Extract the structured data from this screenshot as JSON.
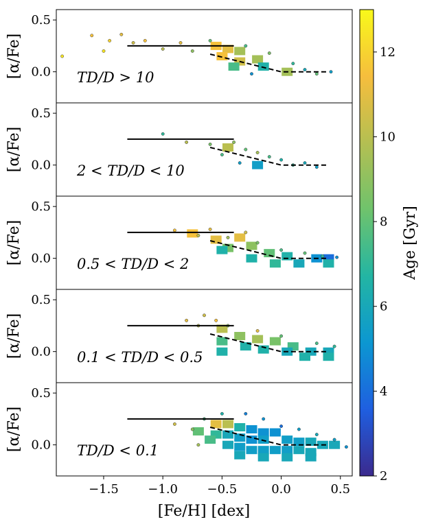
{
  "chart_data": {
    "type": "scatter",
    "title": "",
    "shared_x": {
      "label": "[Fe/H] [dex]",
      "xlim": [
        -1.9,
        0.6
      ],
      "ticks": [
        -1.5,
        -1.0,
        -0.5,
        0.0,
        0.5
      ],
      "tick_labels": [
        "−1.5",
        "−1.0",
        "−0.5",
        "0.0",
        "0.5"
      ]
    },
    "colorbar": {
      "label": "Age [Gyr]",
      "range": [
        2,
        13
      ],
      "ticks": [
        2,
        4,
        6,
        8,
        10,
        12
      ],
      "tick_labels": [
        "2",
        "4",
        "6",
        "8",
        "10",
        "12"
      ],
      "stops": [
        "#3b2a8e",
        "#1f5fe0",
        "#0c97d1",
        "#23b5a3",
        "#6fc36c",
        "#b4bf52",
        "#f6be3d",
        "#f9f91a"
      ]
    },
    "panels": [
      {
        "annotation": "TD/D > 10",
        "ylabel": "[α/Fe]",
        "ylim": [
          -0.3,
          0.6
        ],
        "yticks": [
          0.0,
          0.5
        ],
        "ytick_labels": [
          "0.0",
          "0.5"
        ],
        "solid_line": {
          "x": [
            -1.3,
            -0.4
          ],
          "y": [
            0.25,
            0.25
          ]
        },
        "dashed_line": {
          "x": [
            -0.6,
            0.0,
            0.38
          ],
          "y": [
            0.17,
            0.0,
            0.0
          ]
        },
        "bins": [
          {
            "x": -0.55,
            "y": 0.25,
            "age": 11.5
          },
          {
            "x": -0.45,
            "y": 0.22,
            "age": 11.0
          },
          {
            "x": -0.35,
            "y": 0.2,
            "age": 9.5
          },
          {
            "x": -0.5,
            "y": 0.15,
            "age": 11.5
          },
          {
            "x": -0.35,
            "y": 0.1,
            "age": 10.5
          },
          {
            "x": -0.2,
            "y": 0.12,
            "age": 9.5
          },
          {
            "x": -0.15,
            "y": 0.05,
            "age": 6.5
          },
          {
            "x": -0.4,
            "y": 0.05,
            "age": 7.5
          },
          {
            "x": 0.05,
            "y": 0.0,
            "age": 9.5
          }
        ],
        "points": [
          {
            "x": -1.85,
            "y": 0.15,
            "age": 12.5
          },
          {
            "x": -1.6,
            "y": 0.35,
            "age": 11.5
          },
          {
            "x": -1.45,
            "y": 0.3,
            "age": 12.0
          },
          {
            "x": -1.35,
            "y": 0.36,
            "age": 11.0
          },
          {
            "x": -1.5,
            "y": 0.2,
            "age": 12.5
          },
          {
            "x": -1.25,
            "y": 0.28,
            "age": 10.5
          },
          {
            "x": -1.15,
            "y": 0.3,
            "age": 11.5
          },
          {
            "x": -1.0,
            "y": 0.22,
            "age": 10.0
          },
          {
            "x": -0.85,
            "y": 0.28,
            "age": 11.0
          },
          {
            "x": -0.75,
            "y": 0.2,
            "age": 9.0
          },
          {
            "x": -0.6,
            "y": 0.3,
            "age": 8.0
          },
          {
            "x": -0.3,
            "y": 0.25,
            "age": 7.5
          },
          {
            "x": -0.1,
            "y": 0.18,
            "age": 8.5
          },
          {
            "x": 0.1,
            "y": 0.08,
            "age": 7.0
          },
          {
            "x": 0.2,
            "y": 0.02,
            "age": 6.0
          },
          {
            "x": 0.3,
            "y": -0.02,
            "age": 8.0
          },
          {
            "x": 0.42,
            "y": 0.0,
            "age": 5.5
          },
          {
            "x": -0.25,
            "y": -0.02,
            "age": 5.0
          }
        ]
      },
      {
        "annotation": "2 < TD/D < 10",
        "ylabel": "[α/Fe]",
        "ylim": [
          -0.3,
          0.6
        ],
        "yticks": [
          0.0,
          0.5
        ],
        "ytick_labels": [
          "0.0",
          "0.5"
        ],
        "solid_line": {
          "x": [
            -1.3,
            -0.4
          ],
          "y": [
            0.25,
            0.25
          ]
        },
        "dashed_line": {
          "x": [
            -0.6,
            0.0,
            0.38
          ],
          "y": [
            0.17,
            0.0,
            0.0
          ]
        },
        "bins": [
          {
            "x": -0.45,
            "y": 0.17,
            "age": 10.0
          },
          {
            "x": -0.2,
            "y": 0.0,
            "age": 5.5
          }
        ],
        "points": [
          {
            "x": -1.0,
            "y": 0.3,
            "age": 7.0
          },
          {
            "x": -0.8,
            "y": 0.22,
            "age": 10.0
          },
          {
            "x": -0.6,
            "y": 0.2,
            "age": 8.5
          },
          {
            "x": -0.5,
            "y": 0.1,
            "age": 7.5
          },
          {
            "x": -0.4,
            "y": 0.22,
            "age": 9.0
          },
          {
            "x": -0.3,
            "y": 0.15,
            "age": 8.0
          },
          {
            "x": -0.2,
            "y": 0.12,
            "age": 9.5
          },
          {
            "x": -0.1,
            "y": 0.08,
            "age": 7.5
          },
          {
            "x": 0.0,
            "y": 0.05,
            "age": 6.5
          },
          {
            "x": -0.35,
            "y": 0.02,
            "age": 5.5
          },
          {
            "x": 0.1,
            "y": 0.0,
            "age": 7.0
          },
          {
            "x": 0.2,
            "y": 0.02,
            "age": 6.0
          },
          {
            "x": 0.3,
            "y": -0.02,
            "age": 5.5
          }
        ]
      },
      {
        "annotation": "0.5 < TD/D < 2",
        "ylabel": "[α/Fe]",
        "ylim": [
          -0.3,
          0.6
        ],
        "yticks": [
          0.0,
          0.5
        ],
        "ytick_labels": [
          "0.0",
          "0.5"
        ],
        "solid_line": {
          "x": [
            -1.3,
            -0.4
          ],
          "y": [
            0.25,
            0.25
          ]
        },
        "dashed_line": {
          "x": [
            -0.6,
            0.0,
            0.38
          ],
          "y": [
            0.17,
            0.0,
            0.0
          ]
        },
        "bins": [
          {
            "x": -0.75,
            "y": 0.24,
            "age": 11.5
          },
          {
            "x": -0.35,
            "y": 0.2,
            "age": 11.0
          },
          {
            "x": -0.55,
            "y": 0.18,
            "age": 11.0
          },
          {
            "x": -0.45,
            "y": 0.1,
            "age": 8.5
          },
          {
            "x": -0.25,
            "y": 0.12,
            "age": 9.0
          },
          {
            "x": -0.5,
            "y": 0.08,
            "age": 6.5
          },
          {
            "x": -0.1,
            "y": 0.05,
            "age": 8.0
          },
          {
            "x": -0.25,
            "y": 0.0,
            "age": 6.5
          },
          {
            "x": 0.05,
            "y": 0.02,
            "age": 6.5
          },
          {
            "x": 0.15,
            "y": -0.05,
            "age": 6.0
          },
          {
            "x": 0.3,
            "y": 0.0,
            "age": 5.0
          },
          {
            "x": 0.4,
            "y": 0.0,
            "age": 4.0
          },
          {
            "x": -0.05,
            "y": -0.05,
            "age": 7.0
          },
          {
            "x": 0.4,
            "y": -0.05,
            "age": 6.5
          }
        ],
        "points": [
          {
            "x": -0.9,
            "y": 0.27,
            "age": 11.5
          },
          {
            "x": -0.7,
            "y": 0.22,
            "age": 10.0
          },
          {
            "x": -0.6,
            "y": 0.28,
            "age": 11.0
          },
          {
            "x": -0.45,
            "y": 0.2,
            "age": 9.5
          },
          {
            "x": -0.3,
            "y": 0.25,
            "age": 10.5
          },
          {
            "x": -0.2,
            "y": 0.15,
            "age": 8.5
          },
          {
            "x": 0.0,
            "y": 0.08,
            "age": 7.5
          },
          {
            "x": 0.2,
            "y": 0.05,
            "age": 8.0
          },
          {
            "x": 0.35,
            "y": 0.02,
            "age": 7.0
          },
          {
            "x": 0.47,
            "y": 0.01,
            "age": 5.0
          }
        ]
      },
      {
        "annotation": "0.1 < TD/D < 0.5",
        "ylabel": "[α/Fe]",
        "ylim": [
          -0.3,
          0.6
        ],
        "yticks": [
          0.0,
          0.5
        ],
        "ytick_labels": [
          "0.0",
          "0.5"
        ],
        "solid_line": {
          "x": [
            -1.3,
            -0.4
          ],
          "y": [
            0.25,
            0.25
          ]
        },
        "dashed_line": {
          "x": [
            -0.6,
            0.0,
            0.38
          ],
          "y": [
            0.17,
            0.0,
            0.0
          ]
        },
        "bins": [
          {
            "x": -0.5,
            "y": 0.22,
            "age": 10.0
          },
          {
            "x": -0.35,
            "y": 0.15,
            "age": 9.0
          },
          {
            "x": -0.5,
            "y": 0.1,
            "age": 7.5
          },
          {
            "x": -0.2,
            "y": 0.12,
            "age": 9.5
          },
          {
            "x": -0.05,
            "y": 0.1,
            "age": 8.5
          },
          {
            "x": 0.1,
            "y": 0.05,
            "age": 7.5
          },
          {
            "x": -0.3,
            "y": 0.05,
            "age": 6.5
          },
          {
            "x": -0.15,
            "y": 0.02,
            "age": 6.5
          },
          {
            "x": 0.05,
            "y": 0.0,
            "age": 6.0
          },
          {
            "x": 0.25,
            "y": 0.0,
            "age": 6.0
          },
          {
            "x": 0.4,
            "y": 0.0,
            "age": 6.0
          },
          {
            "x": -0.5,
            "y": 0.0,
            "age": 6.5
          },
          {
            "x": 0.2,
            "y": -0.05,
            "age": 6.5
          },
          {
            "x": 0.4,
            "y": -0.05,
            "age": 6.5
          }
        ],
        "points": [
          {
            "x": -0.8,
            "y": 0.3,
            "age": 11.0
          },
          {
            "x": -0.65,
            "y": 0.35,
            "age": 10.5
          },
          {
            "x": -0.7,
            "y": 0.25,
            "age": 10.0
          },
          {
            "x": -0.55,
            "y": 0.3,
            "age": 11.5
          },
          {
            "x": -0.45,
            "y": 0.25,
            "age": 9.0
          },
          {
            "x": -0.2,
            "y": 0.2,
            "age": 11.0
          },
          {
            "x": 0.0,
            "y": 0.15,
            "age": 8.0
          },
          {
            "x": 0.3,
            "y": 0.08,
            "age": 7.5
          },
          {
            "x": 0.45,
            "y": 0.05,
            "age": 7.0
          }
        ]
      },
      {
        "annotation": "TD/D < 0.1",
        "ylabel": "[α/Fe]",
        "ylim": [
          -0.3,
          0.6
        ],
        "yticks": [
          0.0,
          0.5
        ],
        "ytick_labels": [
          "0.0",
          "0.5"
        ],
        "solid_line": {
          "x": [
            -1.3,
            -0.4
          ],
          "y": [
            0.25,
            0.25
          ]
        },
        "dashed_line": {
          "x": [
            -0.6,
            0.0,
            0.38
          ],
          "y": [
            0.17,
            0.0,
            0.0
          ]
        },
        "bins": [
          {
            "x": -0.55,
            "y": 0.2,
            "age": 11.0
          },
          {
            "x": -0.45,
            "y": 0.2,
            "age": 10.0
          },
          {
            "x": -0.35,
            "y": 0.17,
            "age": 6.5
          },
          {
            "x": -0.25,
            "y": 0.15,
            "age": 5.0
          },
          {
            "x": -0.15,
            "y": 0.12,
            "age": 5.0
          },
          {
            "x": -0.05,
            "y": 0.12,
            "age": 5.0
          },
          {
            "x": -0.55,
            "y": 0.1,
            "age": 7.0
          },
          {
            "x": -0.45,
            "y": 0.1,
            "age": 6.0
          },
          {
            "x": -0.35,
            "y": 0.07,
            "age": 5.5
          },
          {
            "x": -0.25,
            "y": 0.05,
            "age": 5.0
          },
          {
            "x": -0.15,
            "y": 0.05,
            "age": 5.5
          },
          {
            "x": 0.05,
            "y": 0.05,
            "age": 5.5
          },
          {
            "x": 0.15,
            "y": 0.03,
            "age": 5.5
          },
          {
            "x": 0.25,
            "y": 0.03,
            "age": 6.0
          },
          {
            "x": 0.35,
            "y": 0.0,
            "age": 6.0
          },
          {
            "x": -0.45,
            "y": 0.0,
            "age": 6.0
          },
          {
            "x": -0.35,
            "y": -0.02,
            "age": 5.5
          },
          {
            "x": -0.25,
            "y": -0.05,
            "age": 5.5
          },
          {
            "x": -0.15,
            "y": -0.05,
            "age": 5.5
          },
          {
            "x": -0.05,
            "y": -0.05,
            "age": 5.5
          },
          {
            "x": 0.05,
            "y": -0.05,
            "age": 5.5
          },
          {
            "x": 0.15,
            "y": -0.05,
            "age": 6.0
          },
          {
            "x": 0.25,
            "y": -0.07,
            "age": 6.0
          },
          {
            "x": 0.45,
            "y": 0.0,
            "age": 6.0
          },
          {
            "x": -0.35,
            "y": -0.1,
            "age": 6.0
          },
          {
            "x": -0.15,
            "y": -0.12,
            "age": 6.0
          },
          {
            "x": 0.05,
            "y": -0.12,
            "age": 6.0
          },
          {
            "x": 0.25,
            "y": -0.12,
            "age": 6.0
          },
          {
            "x": -0.7,
            "y": 0.13,
            "age": 8.0
          },
          {
            "x": -0.6,
            "y": 0.05,
            "age": 7.5
          }
        ],
        "points": [
          {
            "x": -0.9,
            "y": 0.2,
            "age": 10.5
          },
          {
            "x": -0.75,
            "y": 0.15,
            "age": 9.0
          },
          {
            "x": -0.65,
            "y": 0.25,
            "age": 7.5
          },
          {
            "x": -0.5,
            "y": 0.3,
            "age": 6.5
          },
          {
            "x": -0.3,
            "y": 0.3,
            "age": 4.5
          },
          {
            "x": -0.15,
            "y": 0.25,
            "age": 5.0
          },
          {
            "x": 0.0,
            "y": 0.18,
            "age": 4.0
          },
          {
            "x": 0.15,
            "y": 0.15,
            "age": 5.5
          },
          {
            "x": 0.3,
            "y": 0.1,
            "age": 6.0
          },
          {
            "x": 0.45,
            "y": 0.05,
            "age": 5.5
          },
          {
            "x": 0.55,
            "y": -0.02,
            "age": 5.0
          },
          {
            "x": -0.7,
            "y": 0.0,
            "age": 9.5
          }
        ]
      }
    ]
  }
}
